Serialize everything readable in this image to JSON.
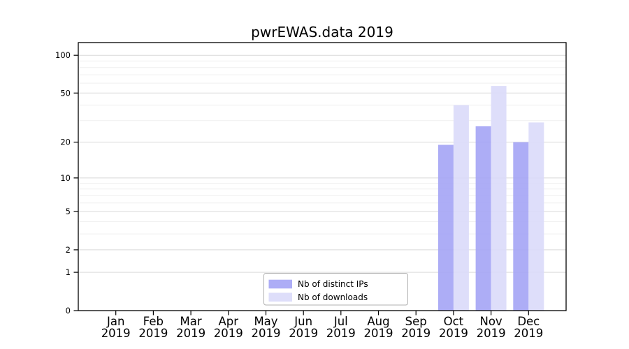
{
  "figure": {
    "background": "#ffffff"
  },
  "colors": {
    "frame": "#000000",
    "major_grid": "#d9d9d9",
    "minor_grid": "#efefef",
    "text": "#000000",
    "legend_border": "#b0b0b0",
    "legend_fill": "#ffffff"
  },
  "legend": {
    "items": [
      {
        "label": "Nb of distinct IPs",
        "color": "#a4a4f5"
      },
      {
        "label": "Nb of downloads",
        "color": "#dadaf9"
      }
    ]
  },
  "chart_data": {
    "type": "bar",
    "title": "pwrEWAS.data 2019",
    "categories": [
      "Jan 2019",
      "Feb 2019",
      "Mar 2019",
      "Apr 2019",
      "May 2019",
      "Jun 2019",
      "Jul 2019",
      "Aug 2019",
      "Sep 2019",
      "Oct 2019",
      "Nov 2019",
      "Dec 2019"
    ],
    "series": [
      {
        "name": "Nb of distinct IPs",
        "color": "#a4a4f5",
        "values": [
          0,
          0,
          0,
          0,
          0,
          0,
          0,
          0,
          0,
          19,
          27,
          20
        ]
      },
      {
        "name": "Nb of downloads",
        "color": "#dadaf9",
        "values": [
          0,
          0,
          0,
          0,
          0,
          0,
          0,
          0,
          0,
          40,
          57,
          29
        ]
      }
    ],
    "xlabel": "",
    "ylabel": "",
    "yscale": "log1p",
    "yticks": [
      0,
      1,
      2,
      5,
      10,
      20,
      50,
      100
    ],
    "minor_yticks": [
      3,
      4,
      6,
      7,
      8,
      9,
      30,
      40,
      60,
      70,
      80,
      90
    ],
    "ylim": [
      0,
      126
    ],
    "grid": "horizontal",
    "legend_position": "lower-center-inside"
  }
}
